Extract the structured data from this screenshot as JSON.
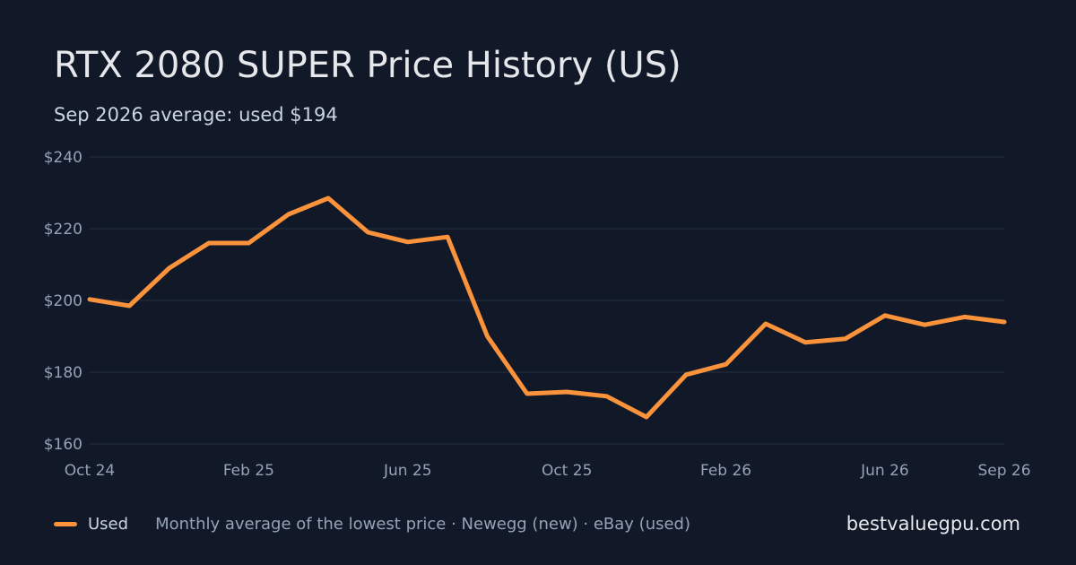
{
  "title": "RTX 2080 SUPER Price History (US)",
  "subtitle": "Sep 2026 average: used $194",
  "legend": {
    "series_label": "Used",
    "note": "Monthly average of the lowest price · Newegg (new) · eBay (used)"
  },
  "site": "bestvaluegpu.com",
  "colors": {
    "background": "#111827",
    "used": "#fb923c",
    "grid": "#1f2937"
  },
  "chart_data": {
    "type": "line",
    "title": "RTX 2080 SUPER Price History (US)",
    "subtitle": "Sep 2026 average: used $194",
    "x": [
      "Oct 24",
      "Nov 24",
      "Dec 24",
      "Jan 25",
      "Feb 25",
      "Mar 25",
      "Apr 25",
      "May 25",
      "Jun 25",
      "Jul 25",
      "Aug 25",
      "Sep 25",
      "Oct 25",
      "Nov 25",
      "Dec 25",
      "Jan 26",
      "Feb 26",
      "Mar 26",
      "Apr 26",
      "May 26",
      "Jun 26",
      "Jul 26",
      "Aug 26",
      "Sep 26"
    ],
    "x_tick_labels": [
      "Oct 24",
      "Feb 25",
      "Jun 25",
      "Oct 25",
      "Feb 26",
      "Jun 26",
      "Sep 26"
    ],
    "y_ticks": [
      "$160",
      "$180",
      "$200",
      "$220",
      "$240"
    ],
    "y_tick_values": [
      160,
      180,
      200,
      220,
      240
    ],
    "ylim": [
      160,
      240
    ],
    "grid": true,
    "legend_position": "bottom-left",
    "series": [
      {
        "name": "Used",
        "color": "#fb923c",
        "values": [
          200.3,
          198.5,
          209,
          216,
          216,
          224,
          228.5,
          219,
          216.3,
          217.7,
          190,
          174,
          174.5,
          173.3,
          167.5,
          179.3,
          182.2,
          193.5,
          188.3,
          189.3,
          195.8,
          193.2,
          195.4,
          194
        ]
      }
    ]
  }
}
